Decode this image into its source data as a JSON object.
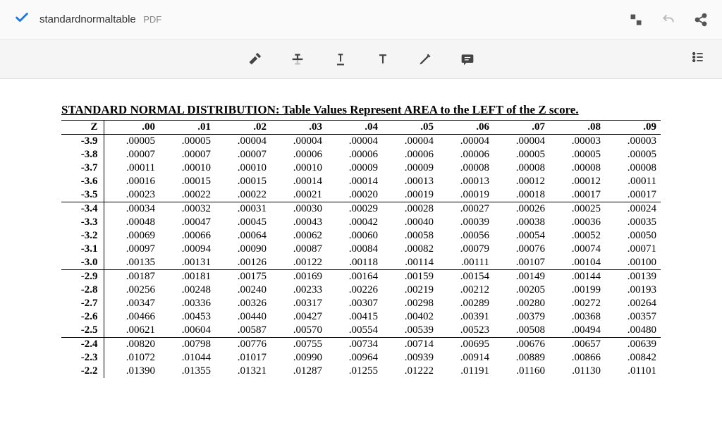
{
  "topbar": {
    "filename": "standardnormaltable",
    "filetype": "PDF"
  },
  "icons": {
    "check": "check-icon",
    "expand": "expand-icon",
    "undo": "undo-icon",
    "share": "share-icon",
    "highlight": "highlight-icon",
    "strikethrough": "strikethrough-icon",
    "underline": "underline-icon",
    "text": "text-icon",
    "pen": "pen-icon",
    "comment": "comment-icon",
    "outline": "outline-icon"
  },
  "document": {
    "title": "STANDARD NORMAL DISTRIBUTION: Table Values Represent AREA to the LEFT of the Z score.",
    "font_family": "Times New Roman",
    "title_fontsize": 17,
    "body_fontsize": 15,
    "text_color": "#000000",
    "border_color": "#000000",
    "group_size": 5,
    "table": {
      "type": "table",
      "z_header": "Z",
      "columns": [
        ".00",
        ".01",
        ".02",
        ".03",
        ".04",
        ".05",
        ".06",
        ".07",
        ".08",
        ".09"
      ],
      "rows": [
        {
          "z": "-3.9",
          "vals": [
            ".00005",
            ".00005",
            ".00004",
            ".00004",
            ".00004",
            ".00004",
            ".00004",
            ".00004",
            ".00003",
            ".00003"
          ]
        },
        {
          "z": "-3.8",
          "vals": [
            ".00007",
            ".00007",
            ".00007",
            ".00006",
            ".00006",
            ".00006",
            ".00006",
            ".00005",
            ".00005",
            ".00005"
          ]
        },
        {
          "z": "-3.7",
          "vals": [
            ".00011",
            ".00010",
            ".00010",
            ".00010",
            ".00009",
            ".00009",
            ".00008",
            ".00008",
            ".00008",
            ".00008"
          ]
        },
        {
          "z": "-3.6",
          "vals": [
            ".00016",
            ".00015",
            ".00015",
            ".00014",
            ".00014",
            ".00013",
            ".00013",
            ".00012",
            ".00012",
            ".00011"
          ]
        },
        {
          "z": "-3.5",
          "vals": [
            ".00023",
            ".00022",
            ".00022",
            ".00021",
            ".00020",
            ".00019",
            ".00019",
            ".00018",
            ".00017",
            ".00017"
          ]
        },
        {
          "z": "-3.4",
          "vals": [
            ".00034",
            ".00032",
            ".00031",
            ".00030",
            ".00029",
            ".00028",
            ".00027",
            ".00026",
            ".00025",
            ".00024"
          ]
        },
        {
          "z": "-3.3",
          "vals": [
            ".00048",
            ".00047",
            ".00045",
            ".00043",
            ".00042",
            ".00040",
            ".00039",
            ".00038",
            ".00036",
            ".00035"
          ]
        },
        {
          "z": "-3.2",
          "vals": [
            ".00069",
            ".00066",
            ".00064",
            ".00062",
            ".00060",
            ".00058",
            ".00056",
            ".00054",
            ".00052",
            ".00050"
          ]
        },
        {
          "z": "-3.1",
          "vals": [
            ".00097",
            ".00094",
            ".00090",
            ".00087",
            ".00084",
            ".00082",
            ".00079",
            ".00076",
            ".00074",
            ".00071"
          ]
        },
        {
          "z": "-3.0",
          "vals": [
            ".00135",
            ".00131",
            ".00126",
            ".00122",
            ".00118",
            ".00114",
            ".00111",
            ".00107",
            ".00104",
            ".00100"
          ]
        },
        {
          "z": "-2.9",
          "vals": [
            ".00187",
            ".00181",
            ".00175",
            ".00169",
            ".00164",
            ".00159",
            ".00154",
            ".00149",
            ".00144",
            ".00139"
          ]
        },
        {
          "z": "-2.8",
          "vals": [
            ".00256",
            ".00248",
            ".00240",
            ".00233",
            ".00226",
            ".00219",
            ".00212",
            ".00205",
            ".00199",
            ".00193"
          ]
        },
        {
          "z": "-2.7",
          "vals": [
            ".00347",
            ".00336",
            ".00326",
            ".00317",
            ".00307",
            ".00298",
            ".00289",
            ".00280",
            ".00272",
            ".00264"
          ]
        },
        {
          "z": "-2.6",
          "vals": [
            ".00466",
            ".00453",
            ".00440",
            ".00427",
            ".00415",
            ".00402",
            ".00391",
            ".00379",
            ".00368",
            ".00357"
          ]
        },
        {
          "z": "-2.5",
          "vals": [
            ".00621",
            ".00604",
            ".00587",
            ".00570",
            ".00554",
            ".00539",
            ".00523",
            ".00508",
            ".00494",
            ".00480"
          ]
        },
        {
          "z": "-2.4",
          "vals": [
            ".00820",
            ".00798",
            ".00776",
            ".00755",
            ".00734",
            ".00714",
            ".00695",
            ".00676",
            ".00657",
            ".00639"
          ]
        },
        {
          "z": "-2.3",
          "vals": [
            ".01072",
            ".01044",
            ".01017",
            ".00990",
            ".00964",
            ".00939",
            ".00914",
            ".00889",
            ".00866",
            ".00842"
          ]
        },
        {
          "z": "-2.2",
          "vals": [
            ".01390",
            ".01355",
            ".01321",
            ".01287",
            ".01255",
            ".01222",
            ".01191",
            ".01160",
            ".01130",
            ".01101"
          ]
        }
      ]
    }
  },
  "colors": {
    "topbar_bg": "#fafafa",
    "toolbar_bg": "#f5f5f5",
    "border": "#e0e0e0",
    "icon": "#555555",
    "accent": "#1a73e8"
  }
}
